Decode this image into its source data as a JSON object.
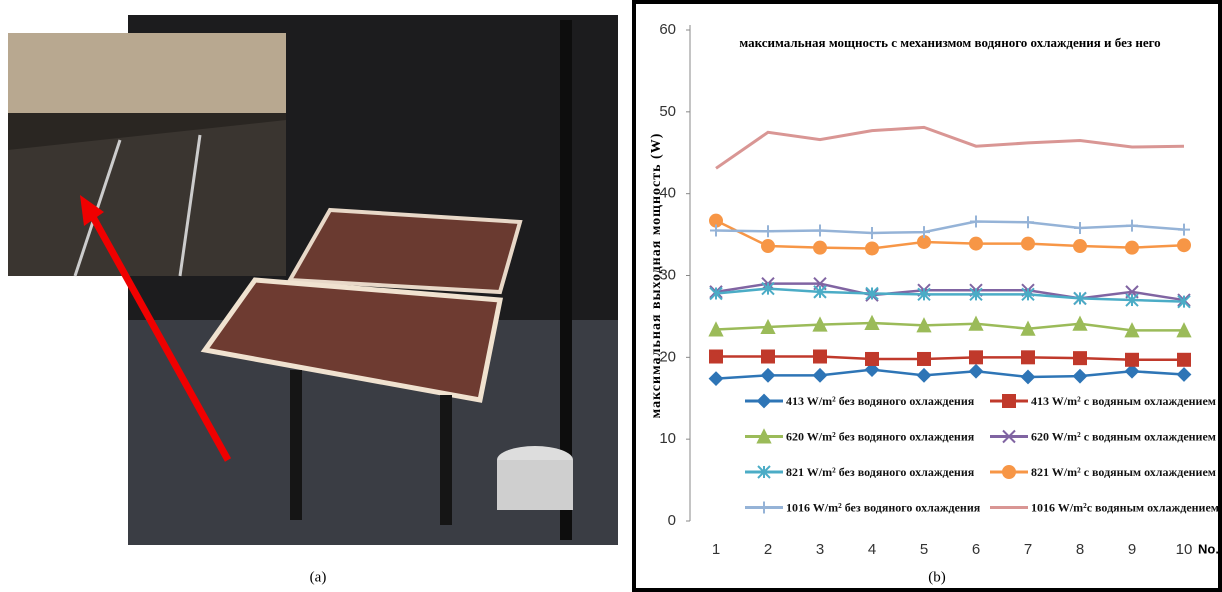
{
  "captions": {
    "left": "(a)",
    "right": "(b)"
  },
  "chart_data": {
    "type": "line",
    "title": "максимальная мощность с механизмом водяного охлаждения и без него",
    "y_label": "максимальная выходная мощность (W)",
    "x_label": "No.",
    "x": [
      1,
      2,
      3,
      4,
      5,
      6,
      7,
      8,
      9,
      10
    ],
    "xlim": [
      0.5,
      10.5
    ],
    "xticks": [
      1,
      2,
      3,
      4,
      5,
      6,
      7,
      8,
      9,
      10
    ],
    "ylim": [
      0,
      60
    ],
    "yticks": [
      0,
      10,
      20,
      30,
      40,
      50,
      60
    ],
    "grid": false,
    "series": [
      {
        "name": "413 W/m² без водяного охлаждения",
        "color": "#2e75b6",
        "marker": "diamond",
        "values": [
          17.4,
          17.8,
          17.8,
          18.5,
          17.8,
          18.3,
          17.6,
          17.7,
          18.3,
          17.9
        ]
      },
      {
        "name": "413 W/m² с водяным охлаждением",
        "color": "#c0392b",
        "marker": "square",
        "values": [
          20.1,
          20.1,
          20.1,
          19.8,
          19.8,
          20.0,
          20.0,
          19.9,
          19.7,
          19.7
        ]
      },
      {
        "name": "620 W/m² без водяного охлаждения",
        "color": "#9bbb59",
        "marker": "triangle",
        "values": [
          23.4,
          23.7,
          24.0,
          24.2,
          23.9,
          24.1,
          23.5,
          24.1,
          23.3,
          23.3
        ]
      },
      {
        "name": "620 W/m² с водяным охлаждением",
        "color": "#8064a2",
        "marker": "x",
        "values": [
          28.0,
          29.0,
          29.0,
          27.6,
          28.2,
          28.2,
          28.2,
          27.2,
          28.0,
          27.0
        ]
      },
      {
        "name": "821 W/m² без водяного охлаждения",
        "color": "#4bacc6",
        "marker": "star",
        "values": [
          27.8,
          28.4,
          28.0,
          27.8,
          27.7,
          27.7,
          27.7,
          27.2,
          27.0,
          26.8
        ]
      },
      {
        "name": "821 W/m² с водяным охлаждением",
        "color": "#f79646",
        "marker": "circle",
        "values": [
          36.7,
          33.6,
          33.4,
          33.3,
          34.1,
          33.9,
          33.9,
          33.6,
          33.4,
          33.7
        ]
      },
      {
        "name": "1016 W/m² без водяного охлаждения",
        "color": "#95b3d7",
        "marker": "plus",
        "values": [
          35.5,
          35.4,
          35.5,
          35.2,
          35.3,
          36.6,
          36.5,
          35.8,
          36.1,
          35.6
        ]
      },
      {
        "name": "1016 W/m²с водяным охлаждением",
        "color": "#d99694",
        "marker": "none",
        "values": [
          43.1,
          47.5,
          46.6,
          47.7,
          48.1,
          45.8,
          46.2,
          46.5,
          45.7,
          45.8
        ]
      }
    ]
  }
}
